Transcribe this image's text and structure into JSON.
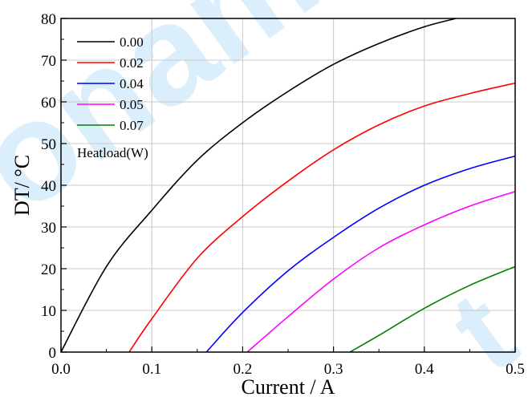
{
  "watermark": {
    "main": "onamic",
    "edge": "t",
    "color": "#4aa8f2"
  },
  "chart_data": {
    "type": "line",
    "title": "",
    "xlabel": "Current / A",
    "ylabel": "DT/ °C",
    "xlim": [
      0,
      0.5
    ],
    "ylim": [
      0,
      80
    ],
    "xticks": [
      "0.0",
      "0.1",
      "0.2",
      "0.3",
      "0.4",
      "0.5"
    ],
    "yticks": [
      "0",
      "10",
      "20",
      "30",
      "40",
      "50",
      "60",
      "70",
      "80"
    ],
    "grid": true,
    "legend_position": "top-left",
    "legend_title": "Heatload(W)",
    "series": [
      {
        "name": "0.00",
        "color": "#000000",
        "points": [
          [
            0.0,
            0.0
          ],
          [
            0.05,
            20.5
          ],
          [
            0.1,
            34.0
          ],
          [
            0.15,
            46.0
          ],
          [
            0.2,
            55.0
          ],
          [
            0.25,
            62.5
          ],
          [
            0.3,
            69.0
          ],
          [
            0.35,
            74.0
          ],
          [
            0.4,
            78.0
          ],
          [
            0.435,
            80.0
          ]
        ]
      },
      {
        "name": "0.02",
        "color": "#ff0000",
        "points": [
          [
            0.075,
            0.0
          ],
          [
            0.1,
            8.0
          ],
          [
            0.15,
            22.5
          ],
          [
            0.2,
            32.5
          ],
          [
            0.25,
            41.0
          ],
          [
            0.3,
            48.5
          ],
          [
            0.35,
            54.5
          ],
          [
            0.4,
            59.0
          ],
          [
            0.45,
            62.0
          ],
          [
            0.5,
            64.5
          ]
        ]
      },
      {
        "name": "0.04",
        "color": "#0000ff",
        "points": [
          [
            0.16,
            0.0
          ],
          [
            0.2,
            9.5
          ],
          [
            0.25,
            19.5
          ],
          [
            0.3,
            27.5
          ],
          [
            0.35,
            34.5
          ],
          [
            0.4,
            40.0
          ],
          [
            0.45,
            44.0
          ],
          [
            0.5,
            47.0
          ]
        ]
      },
      {
        "name": "0.05",
        "color": "#ff00ff",
        "points": [
          [
            0.205,
            0.0
          ],
          [
            0.25,
            8.5
          ],
          [
            0.3,
            17.5
          ],
          [
            0.35,
            25.0
          ],
          [
            0.4,
            30.5
          ],
          [
            0.45,
            35.0
          ],
          [
            0.5,
            38.5
          ]
        ]
      },
      {
        "name": "0.07",
        "color": "#008000",
        "points": [
          [
            0.318,
            0.0
          ],
          [
            0.35,
            4.0
          ],
          [
            0.4,
            10.5
          ],
          [
            0.45,
            16.0
          ],
          [
            0.5,
            20.5
          ]
        ]
      }
    ]
  }
}
